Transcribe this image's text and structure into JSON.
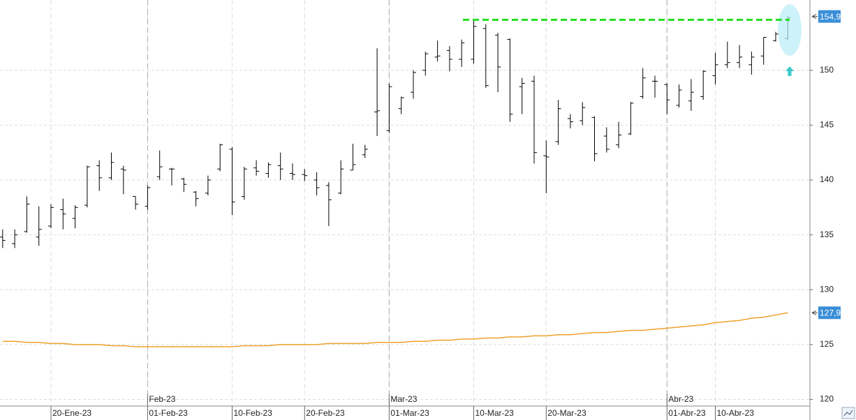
{
  "chart_data": {
    "type": "ohlc",
    "categories": [
      null,
      null,
      null,
      null,
      "20-Ene-23",
      null,
      null,
      null,
      null,
      null,
      null,
      null,
      "01-Feb-23",
      null,
      null,
      null,
      null,
      null,
      null,
      "10-Feb-23",
      null,
      null,
      null,
      null,
      null,
      "20-Feb-23",
      null,
      null,
      null,
      null,
      null,
      null,
      "01-Mar-23",
      null,
      null,
      null,
      null,
      null,
      null,
      "10-Mar-23",
      null,
      null,
      null,
      null,
      null,
      "20-Mar-23",
      null,
      null,
      null,
      null,
      null,
      null,
      null,
      null,
      null,
      "01-Abr-23",
      null,
      null,
      null,
      "10-Abr-23",
      null,
      null,
      null,
      null,
      null,
      null
    ],
    "months": [
      null,
      null,
      null,
      null,
      null,
      null,
      null,
      null,
      null,
      null,
      null,
      null,
      "Feb-23",
      null,
      null,
      null,
      null,
      null,
      null,
      null,
      null,
      null,
      null,
      null,
      null,
      null,
      null,
      null,
      null,
      null,
      null,
      null,
      "Mar-23",
      null,
      null,
      null,
      null,
      null,
      null,
      null,
      null,
      null,
      null,
      null,
      null,
      null,
      null,
      null,
      null,
      null,
      null,
      null,
      null,
      null,
      null,
      "Abr-23",
      null,
      null,
      null,
      null,
      null,
      null,
      null,
      null,
      null,
      null
    ],
    "open": [
      134.8,
      134.2,
      135.3,
      134.8,
      135.8,
      137.3,
      136.5,
      137.7,
      141.3,
      140.2,
      141.0,
      138.5,
      137.6,
      140.3,
      141.0,
      140.1,
      138.9,
      138.8,
      141.0,
      142.8,
      138.5,
      141.1,
      140.6,
      141.3,
      140.6,
      140.5,
      140.0,
      139.5,
      138.8,
      140.9,
      142.3,
      146.2,
      144.5,
      146.5,
      148.0,
      150.0,
      151.2,
      151.8,
      151.0,
      151.0,
      153.8,
      153.2,
      152.8,
      148.5,
      149.0,
      142.2,
      143.5,
      145.6,
      145.4,
      145.7,
      144.0,
      143.2,
      144.2,
      147.6,
      149.0,
      148.7,
      146.8,
      147.2,
      147.6,
      149.5,
      150.5,
      150.7,
      150.5,
      151.3,
      152.7,
      152.9
    ],
    "high": [
      135.5,
      135.5,
      138.5,
      137.6,
      137.8,
      138.3,
      137.7,
      141.3,
      141.8,
      142.5,
      141.3,
      138.5,
      139.5,
      142.7,
      141.1,
      140.2,
      139.0,
      140.4,
      143.3,
      143.0,
      141.2,
      141.8,
      141.6,
      142.5,
      141.5,
      141.0,
      140.7,
      139.8,
      141.8,
      143.3,
      143.2,
      152.0,
      148.8,
      147.6,
      150.0,
      151.7,
      152.7,
      152.2,
      152.8,
      154.6,
      154.2,
      153.4,
      152.9,
      149.3,
      149.5,
      143.6,
      147.3,
      146.0,
      147.1,
      145.8,
      144.8,
      145.3,
      147.1,
      150.2,
      149.5,
      148.8,
      148.7,
      149.2,
      150.0,
      151.6,
      152.6,
      152.3,
      151.7,
      153.0,
      153.5,
      154.9
    ],
    "low": [
      133.8,
      133.8,
      135.2,
      134.0,
      135.6,
      135.5,
      135.6,
      137.5,
      139.0,
      140.0,
      138.7,
      137.3,
      137.3,
      140.0,
      139.5,
      138.9,
      137.6,
      138.6,
      140.8,
      136.8,
      138.2,
      140.4,
      140.2,
      140.0,
      140.0,
      139.9,
      138.6,
      135.8,
      138.7,
      140.9,
      142.0,
      144.0,
      144.3,
      146.0,
      147.4,
      149.5,
      150.8,
      149.9,
      150.3,
      150.6,
      148.4,
      148.0,
      145.3,
      146.0,
      141.5,
      138.8,
      143.2,
      144.7,
      145.0,
      141.7,
      142.5,
      142.9,
      144.1,
      147.4,
      147.5,
      146.0,
      146.6,
      146.3,
      147.3,
      148.7,
      150.2,
      150.2,
      149.6,
      150.5,
      152.6,
      152.8
    ],
    "close": [
      134.5,
      135.0,
      137.8,
      135.5,
      137.5,
      136.9,
      137.5,
      141.2,
      140.2,
      141.6,
      140.9,
      137.8,
      139.3,
      141.2,
      141.0,
      139.6,
      138.3,
      140.0,
      143.2,
      138.0,
      141.0,
      140.8,
      141.4,
      141.0,
      140.5,
      140.4,
      139.3,
      138.2,
      141.0,
      141.4,
      142.8,
      146.3,
      148.5,
      147.5,
      149.8,
      151.5,
      151.3,
      151.0,
      152.5,
      154.0,
      148.6,
      150.3,
      146.0,
      148.8,
      142.5,
      142.1,
      146.5,
      145.3,
      146.6,
      142.4,
      142.8,
      144.1,
      147.0,
      149.3,
      149.0,
      147.3,
      148.2,
      148.0,
      149.9,
      150.5,
      150.7,
      151.2,
      151.2,
      153.0,
      153.3,
      154.8
    ],
    "ma": {
      "color": "#f0a02c",
      "values": [
        125.3,
        125.3,
        125.2,
        125.2,
        125.1,
        125.1,
        125.0,
        125.0,
        125.0,
        124.9,
        124.9,
        124.8,
        124.8,
        124.8,
        124.8,
        124.8,
        124.8,
        124.8,
        124.8,
        124.8,
        124.9,
        124.9,
        124.9,
        125.0,
        125.0,
        125.0,
        125.0,
        125.1,
        125.1,
        125.1,
        125.1,
        125.2,
        125.2,
        125.2,
        125.3,
        125.3,
        125.4,
        125.4,
        125.5,
        125.5,
        125.6,
        125.6,
        125.7,
        125.7,
        125.8,
        125.8,
        125.9,
        125.9,
        126.0,
        126.1,
        126.1,
        126.2,
        126.3,
        126.3,
        126.4,
        126.5,
        126.6,
        126.7,
        126.8,
        127.0,
        127.1,
        127.2,
        127.4,
        127.5,
        127.7,
        127.9
      ]
    },
    "bar_color": "#000000",
    "resistance": {
      "value": 154.6,
      "color": "#22dd22"
    },
    "price_tags": [
      {
        "value": 154.9,
        "label": "154,9"
      },
      {
        "value": 127.9,
        "label": "127,9"
      }
    ],
    "ylim": [
      119.4,
      156.4
    ],
    "yticks": [
      120,
      125,
      130,
      135,
      140,
      145,
      150
    ],
    "grid": true
  }
}
